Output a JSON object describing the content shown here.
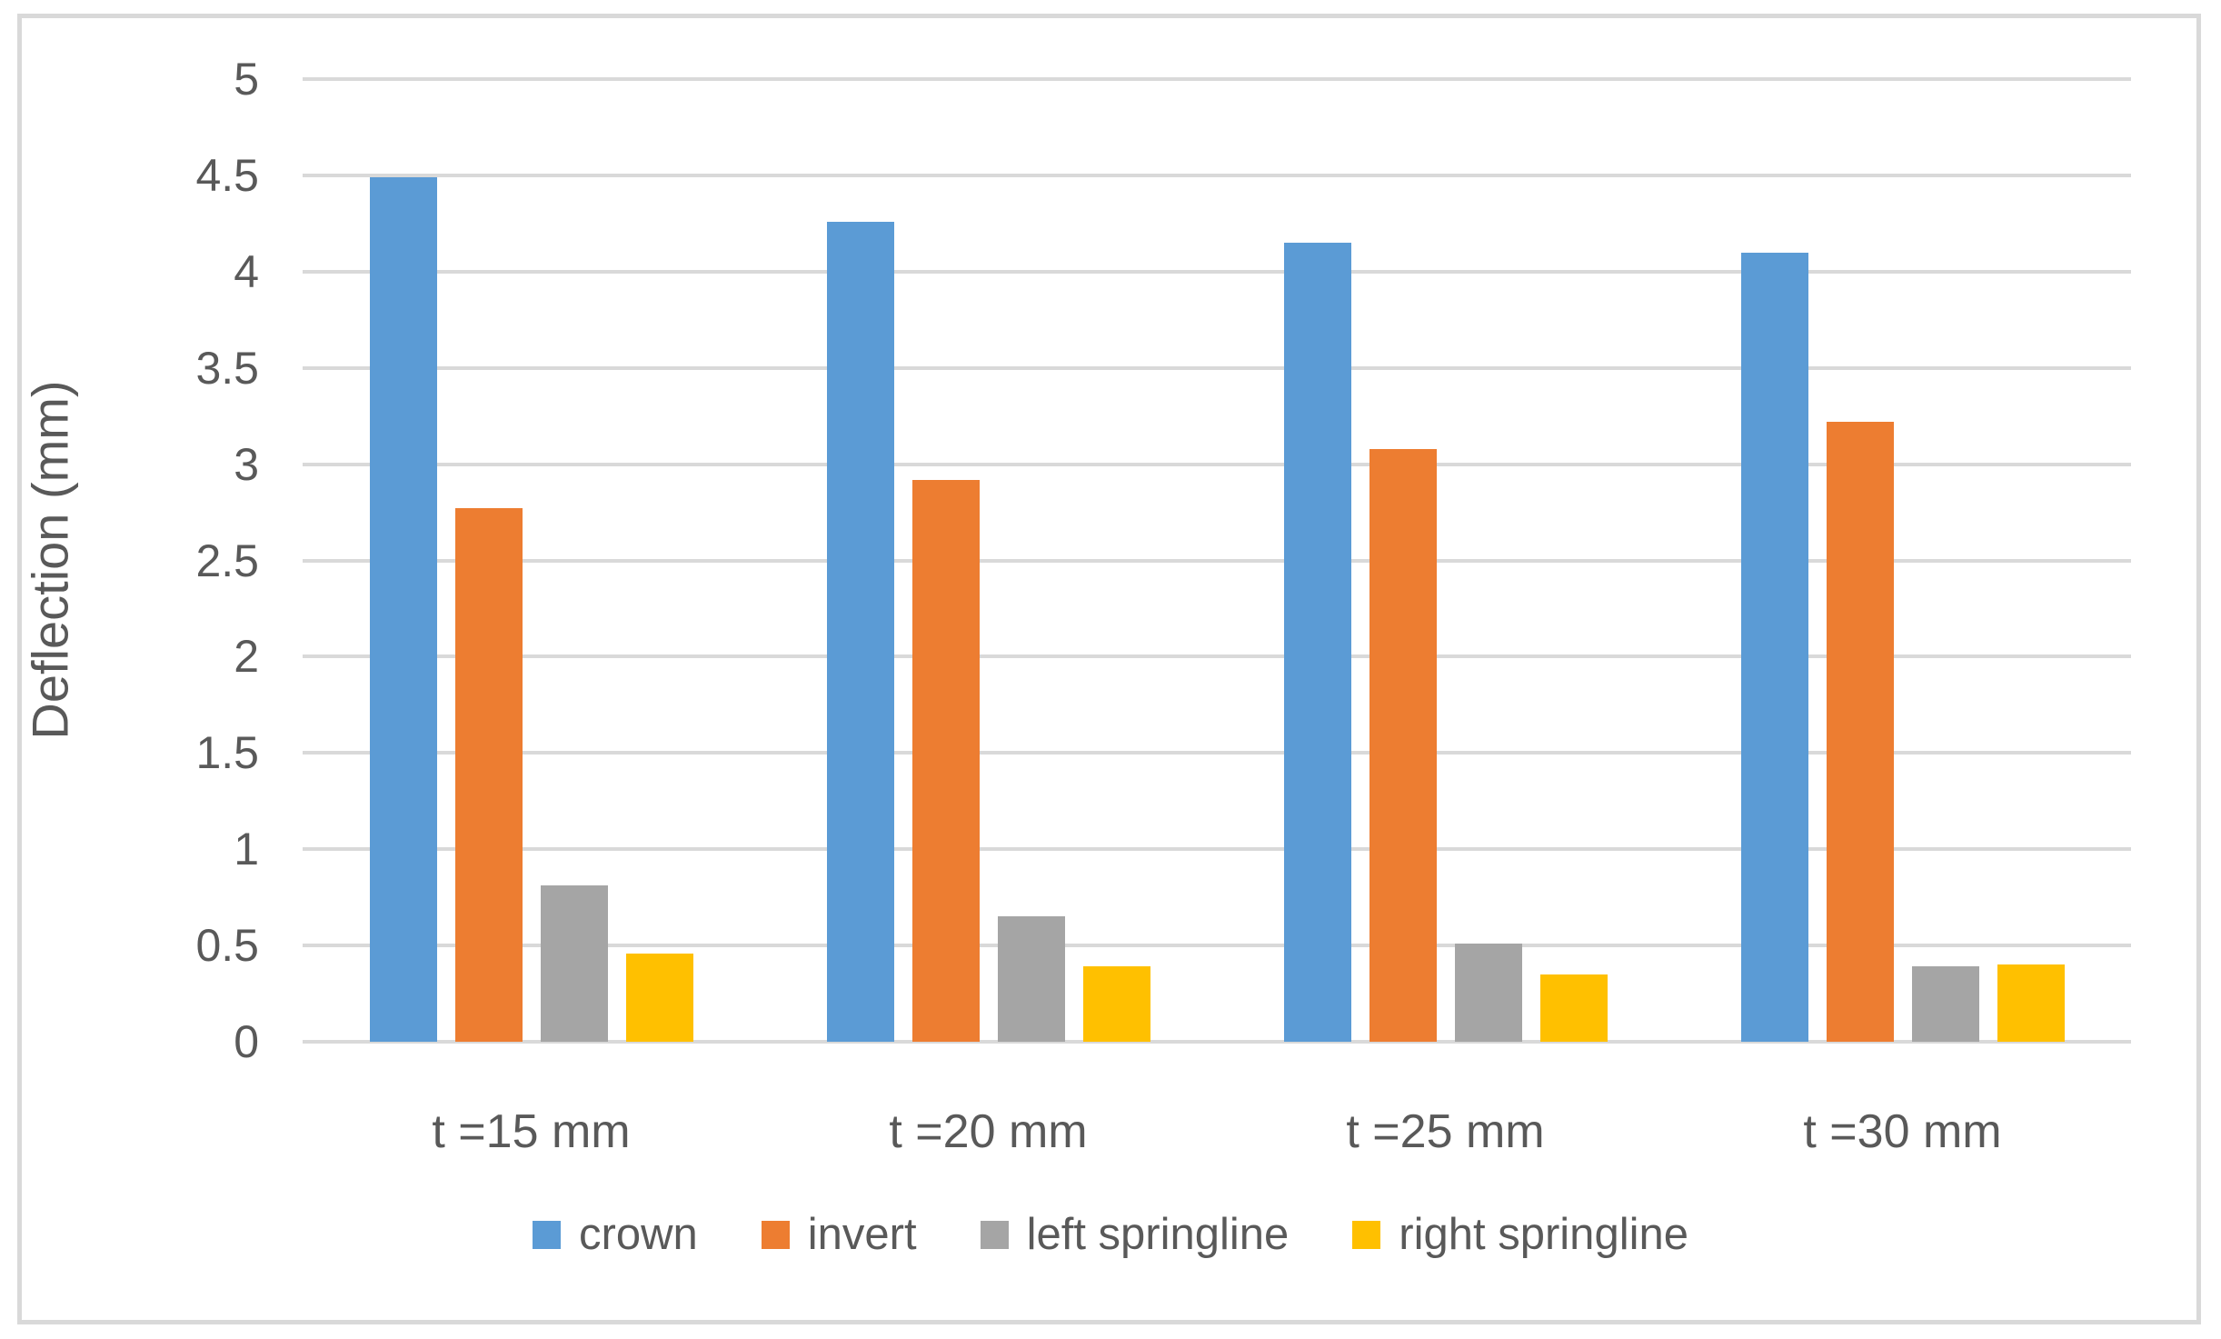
{
  "chart_data": {
    "type": "bar",
    "title": "",
    "xlabel": "",
    "ylabel": "Deflection (mm)",
    "categories": [
      "t =15 mm",
      "t =20 mm",
      "t =25 mm",
      "t =30 mm"
    ],
    "series": [
      {
        "name": "crown",
        "color": "#5B9BD5",
        "values": [
          4.49,
          4.26,
          4.15,
          4.1
        ]
      },
      {
        "name": "invert",
        "color": "#ED7D31",
        "values": [
          2.77,
          2.92,
          3.08,
          3.22
        ]
      },
      {
        "name": "left springline",
        "color": "#A5A5A5",
        "values": [
          0.81,
          0.65,
          0.51,
          0.39
        ]
      },
      {
        "name": "right springline",
        "color": "#FFC000",
        "values": [
          0.46,
          0.39,
          0.35,
          0.4
        ]
      }
    ],
    "ylim": [
      0,
      5
    ],
    "ytick_step": 0.5,
    "ytick_labels": [
      "0",
      "0.5",
      "1",
      "1.5",
      "2",
      "2.5",
      "3",
      "3.5",
      "4",
      "4.5",
      "5"
    ],
    "grid": "horizontal-only",
    "legend_position": "bottom-center",
    "colors": {
      "text": "#595959",
      "gridline": "#D9D9D9",
      "border": "#D9D9D9",
      "background": "#FFFFFF"
    }
  }
}
